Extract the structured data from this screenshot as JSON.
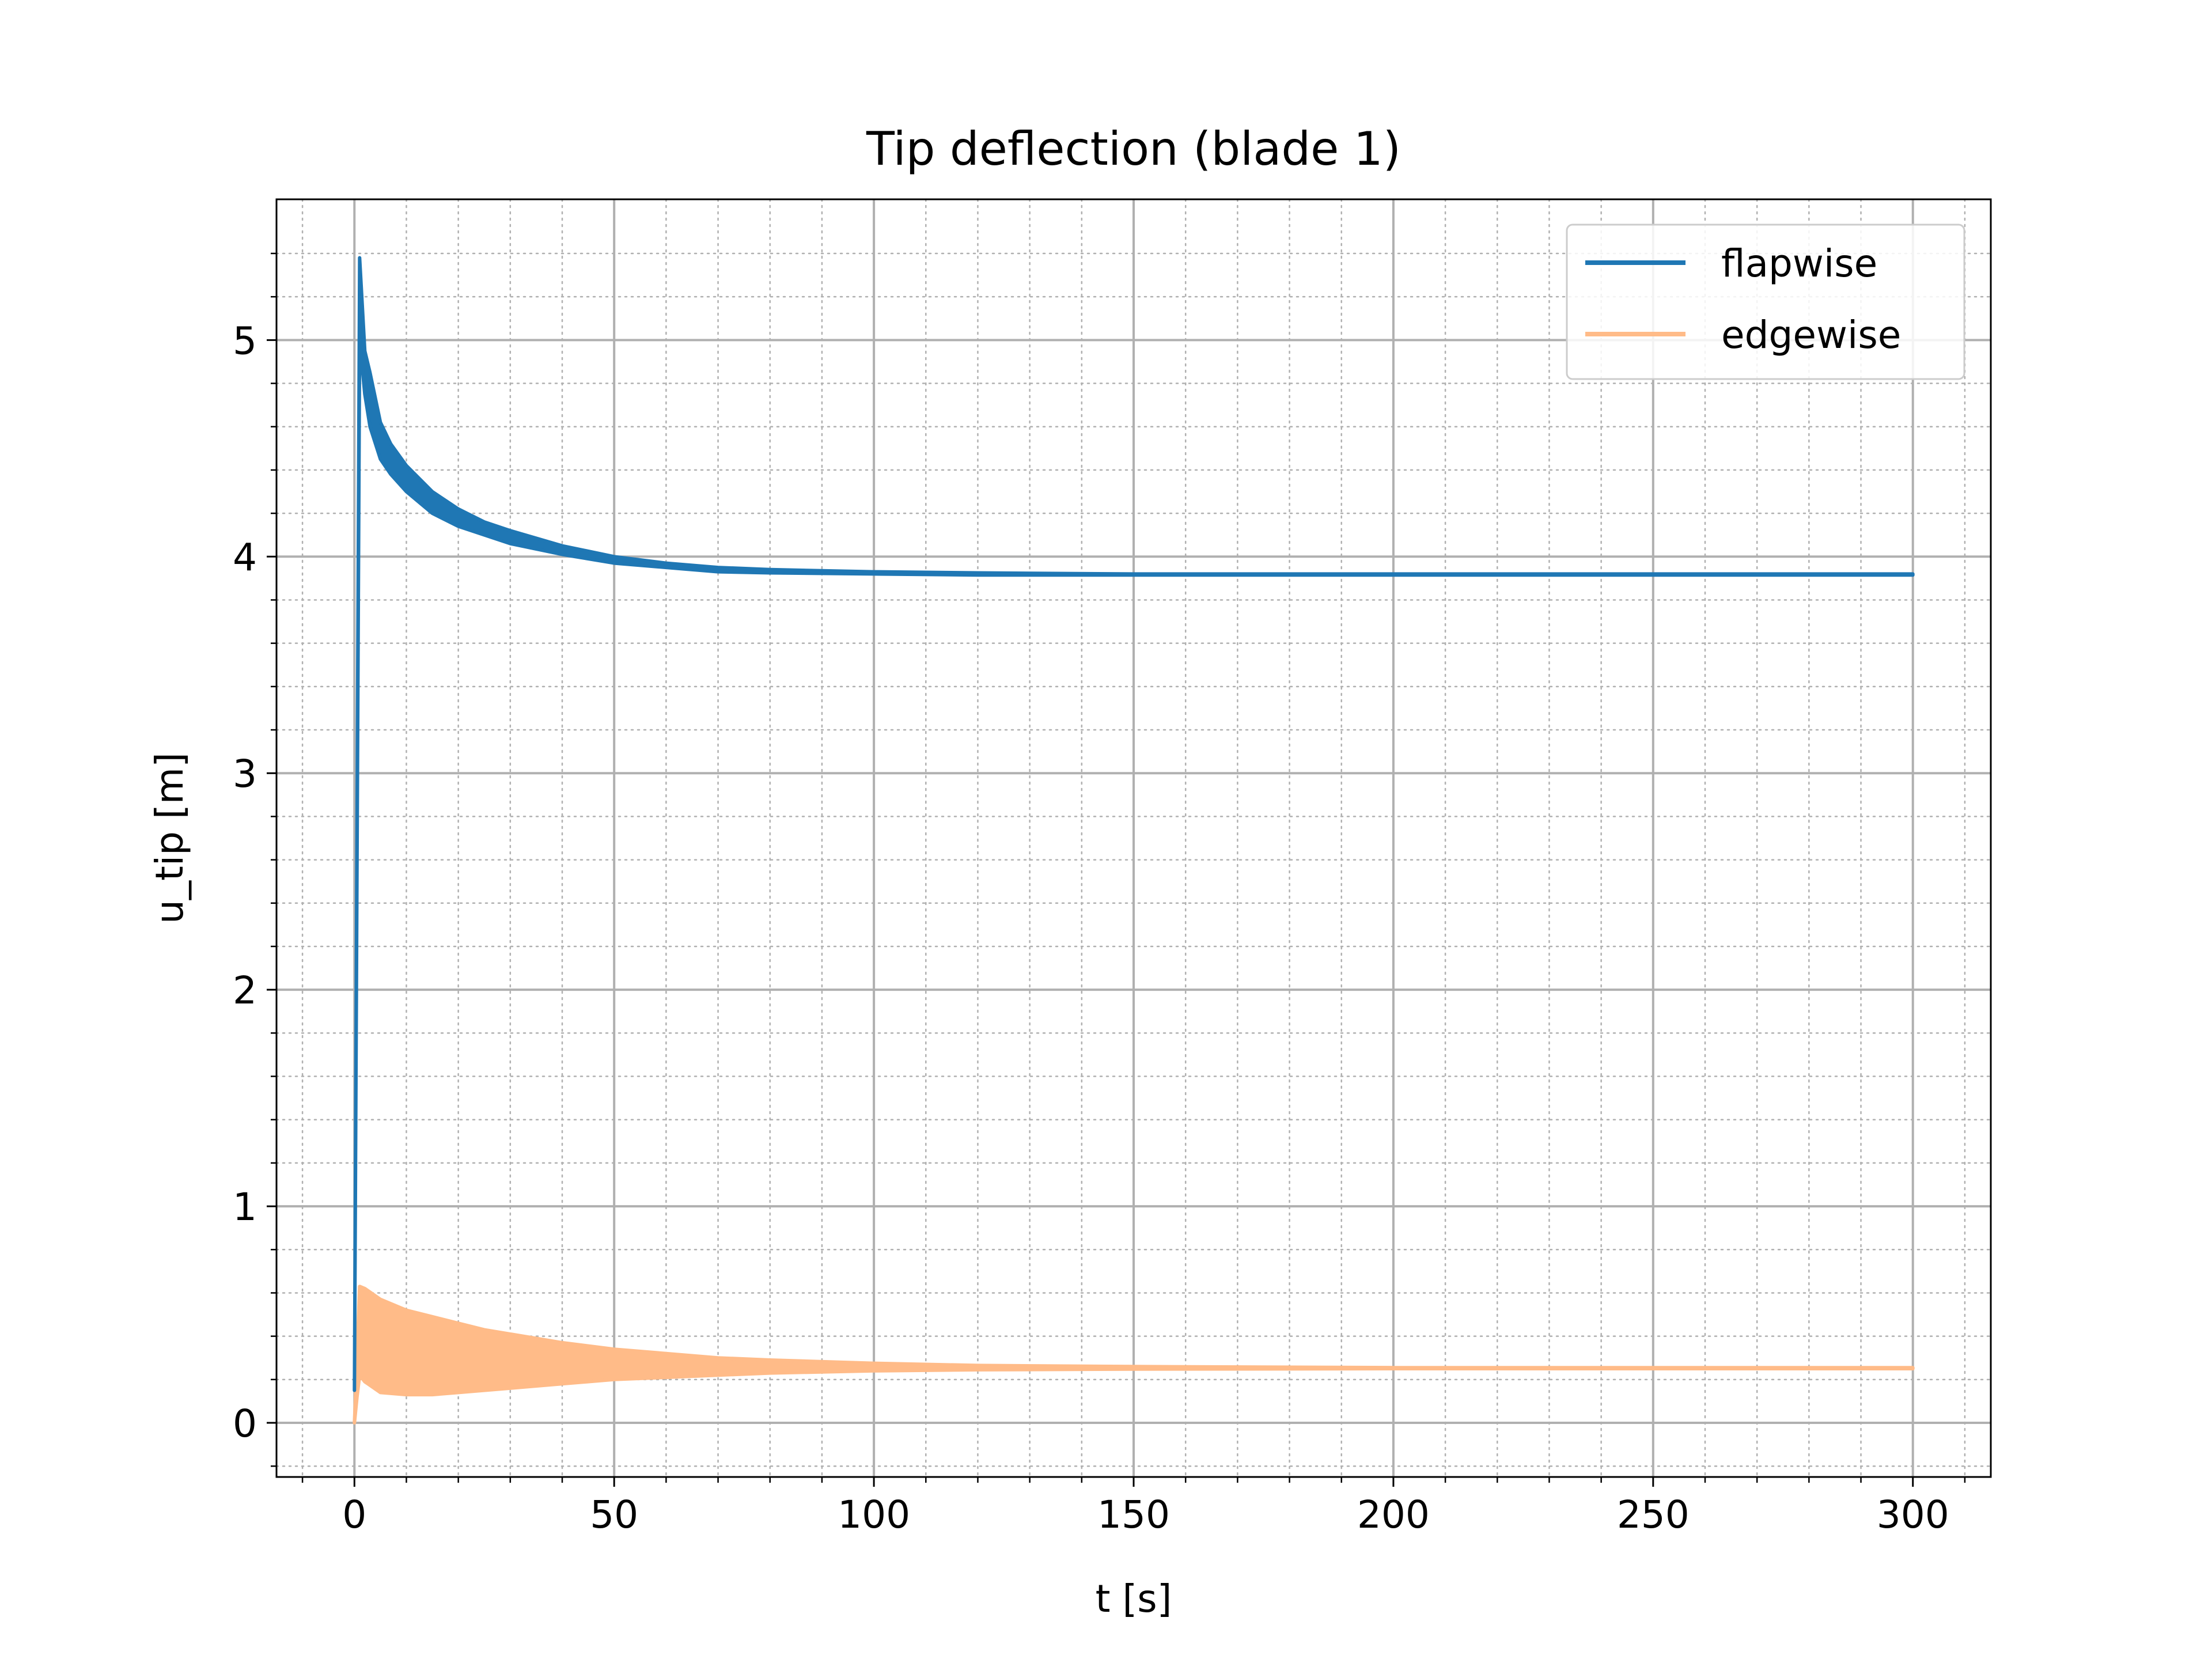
{
  "chart_data": {
    "type": "line",
    "title": "Tip deflection (blade 1)",
    "xlabel": "t [s]",
    "ylabel": "u_tip [m]",
    "xlim": [
      -15,
      315
    ],
    "ylim": [
      -0.25,
      5.65
    ],
    "xticks": [
      0,
      50,
      100,
      150,
      200,
      250,
      300
    ],
    "xtick_labels": [
      "0",
      "50",
      "100",
      "150",
      "200",
      "250",
      "300"
    ],
    "yticks": [
      0,
      1,
      2,
      3,
      4,
      5
    ],
    "ytick_labels": [
      "0",
      "1",
      "2",
      "3",
      "4",
      "5"
    ],
    "grid": {
      "major": true,
      "minor": true,
      "minor_style": "dotted"
    },
    "legend_position": "top-right",
    "series": [
      {
        "name": "flapwise",
        "color": "#1f77b4",
        "band": true,
        "x": [
          0,
          1,
          2,
          3,
          5,
          7,
          10,
          15,
          20,
          25,
          30,
          40,
          50,
          60,
          70,
          80,
          100,
          120,
          150,
          200,
          250,
          300
        ],
        "upper": [
          0.15,
          5.38,
          4.95,
          4.85,
          4.62,
          4.52,
          4.42,
          4.3,
          4.22,
          4.16,
          4.12,
          4.05,
          4.0,
          3.97,
          3.95,
          3.94,
          3.93,
          3.925,
          3.92,
          3.92,
          3.92,
          3.92
        ],
        "lower": [
          0.15,
          5.0,
          4.75,
          4.6,
          4.45,
          4.38,
          4.3,
          4.2,
          4.14,
          4.1,
          4.06,
          4.01,
          3.97,
          3.95,
          3.93,
          3.925,
          3.92,
          3.915,
          3.915,
          3.915,
          3.915,
          3.915
        ]
      },
      {
        "name": "edgewise",
        "color": "#ffbb88",
        "band": true,
        "x": [
          0,
          0.5,
          1,
          2,
          5,
          10,
          15,
          20,
          25,
          30,
          40,
          50,
          60,
          70,
          80,
          100,
          120,
          150,
          200,
          250,
          300
        ],
        "upper": [
          0.0,
          0.3,
          0.63,
          0.62,
          0.57,
          0.52,
          0.49,
          0.46,
          0.43,
          0.41,
          0.37,
          0.34,
          0.32,
          0.3,
          0.29,
          0.275,
          0.265,
          0.26,
          0.255,
          0.255,
          0.255
        ],
        "lower": [
          0.0,
          0.12,
          0.22,
          0.19,
          0.14,
          0.13,
          0.13,
          0.14,
          0.15,
          0.16,
          0.18,
          0.2,
          0.21,
          0.22,
          0.23,
          0.24,
          0.245,
          0.248,
          0.25,
          0.25,
          0.25
        ]
      }
    ]
  }
}
